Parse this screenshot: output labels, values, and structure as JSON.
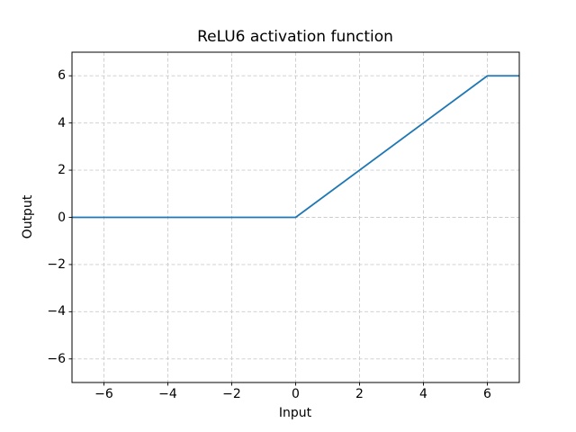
{
  "figure": {
    "background": "#ffffff"
  },
  "chart_data": {
    "type": "line",
    "title": "ReLU6 activation function",
    "xlabel": "Input",
    "ylabel": "Output",
    "xlim": [
      -7,
      7
    ],
    "ylim": [
      -7,
      7
    ],
    "grid": true,
    "grid_style": "dashed",
    "xticks": {
      "values": [
        -6,
        -4,
        -2,
        0,
        2,
        4,
        6
      ],
      "labels": [
        "−6",
        "−4",
        "−2",
        "0",
        "2",
        "4",
        "6"
      ]
    },
    "yticks": {
      "values": [
        -6,
        -4,
        -2,
        0,
        2,
        4,
        6
      ],
      "labels": [
        "−6",
        "−4",
        "−2",
        "0",
        "2",
        "4",
        "6"
      ]
    },
    "series": [
      {
        "name": "ReLU6",
        "color": "#1f77b4",
        "linewidth": 1.8,
        "points": [
          [
            -7,
            0
          ],
          [
            0,
            0
          ],
          [
            6,
            6
          ],
          [
            7,
            6
          ]
        ]
      }
    ],
    "colors": {
      "grid": "#cccccc",
      "spine": "#000000",
      "text": "#000000"
    }
  }
}
